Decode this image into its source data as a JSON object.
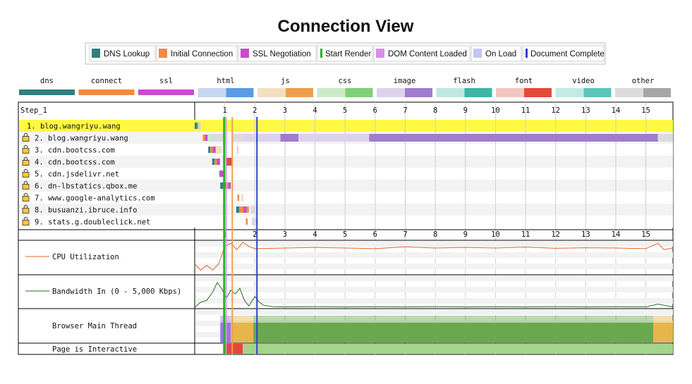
{
  "title": "Connection View",
  "legend": [
    {
      "label": "DNS Lookup",
      "color": "#2e8180",
      "swatch": "box"
    },
    {
      "label": "Initial Connection",
      "color": "#f08a45",
      "swatch": "box"
    },
    {
      "label": "SSL Negotiation",
      "color": "#c94ccd",
      "swatch": "box"
    },
    {
      "label": "Start Render",
      "color": "#28b228",
      "swatch": "line"
    },
    {
      "label": "DOM Content Loaded",
      "color": "#d88ee6",
      "swatch": "box"
    },
    {
      "label": "On Load",
      "color": "#c4c4f5",
      "swatch": "box"
    },
    {
      "label": "Document Complete",
      "color": "#2b3fd0",
      "swatch": "line"
    }
  ],
  "content_types": [
    {
      "label": "dns",
      "color": "#2e8180",
      "split": false
    },
    {
      "label": "connect",
      "color": "#f08a45",
      "split": false
    },
    {
      "label": "ssl",
      "color": "#c94ccd",
      "split": false
    },
    {
      "label": "html",
      "color": "#c6d8ef",
      "dark": "#5a9ce3",
      "split": true
    },
    {
      "label": "js",
      "color": "#f3dfc4",
      "dark": "#eca04d",
      "split": true
    },
    {
      "label": "css",
      "color": "#cbebc8",
      "dark": "#7fd07a",
      "split": true
    },
    {
      "label": "image",
      "color": "#ddd2ec",
      "dark": "#a07ccf",
      "split": true
    },
    {
      "label": "flash",
      "color": "#bfe8e2",
      "dark": "#3fb5a6",
      "split": true
    },
    {
      "label": "font",
      "color": "#f4c6c0",
      "dark": "#e44a3a",
      "split": true
    },
    {
      "label": "video",
      "color": "#c2ebe6",
      "dark": "#58c7ba",
      "split": true
    },
    {
      "label": "other",
      "color": "#dcdcdc",
      "dark": "#a6a6a6",
      "split": true
    }
  ],
  "step_label": "Step_1",
  "axis_ticks": [
    "1",
    "2",
    "3",
    "4",
    "5",
    "6",
    "7",
    "8",
    "9",
    "10",
    "11",
    "12",
    "13",
    "14",
    "15"
  ],
  "hosts": [
    {
      "label": "1. blog.wangriyu.wang",
      "secure": false,
      "highlight": true
    },
    {
      "label": "2. blog.wangriyu.wang",
      "secure": true,
      "highlight": false
    },
    {
      "label": "3. cdn.bootcss.com",
      "secure": true,
      "highlight": false
    },
    {
      "label": "4. cdn.bootcss.com",
      "secure": true,
      "highlight": false
    },
    {
      "label": "5. cdn.jsdelivr.net",
      "secure": true,
      "highlight": false
    },
    {
      "label": "6. dn-lbstatics.qbox.me",
      "secure": true,
      "highlight": false
    },
    {
      "label": "7. www.google-analytics.com",
      "secure": true,
      "highlight": false
    },
    {
      "label": "8. busuanzi.ibruce.info",
      "secure": true,
      "highlight": false
    },
    {
      "label": "9. stats.g.doubleclick.net",
      "secure": true,
      "highlight": false
    }
  ],
  "panels": {
    "cpu_label": "CPU Utilization",
    "bandwidth_label": "Bandwidth In (0 - 5,000 Kbps)",
    "main_thread_label": "Browser Main Thread",
    "interactive_label": "Page is Interactive"
  },
  "chart_data": {
    "type": "waterfall",
    "x_unit": "seconds",
    "xlim": [
      0,
      15.9
    ],
    "markers": {
      "start_render": 0.98,
      "dom_content_loaded": 1.04,
      "on_load": 1.25,
      "document_complete": 2.07
    },
    "connections": [
      {
        "host": "blog.wangriyu.wang",
        "segments": [
          {
            "type": "dns",
            "start": 0.0,
            "end": 0.08
          },
          {
            "type": "connect",
            "start": 0.08,
            "end": 0.12
          },
          {
            "type": "html",
            "start": 0.12,
            "end": 0.2
          }
        ]
      },
      {
        "host": "blog.wangriyu.wang",
        "segments": [
          {
            "type": "connect",
            "start": 0.27,
            "end": 0.35
          },
          {
            "type": "ssl",
            "start": 0.35,
            "end": 0.43
          },
          {
            "type": "css",
            "start": 0.43,
            "end": 0.55
          },
          {
            "type": "other",
            "start": 0.55,
            "end": 1.0
          },
          {
            "type": "other",
            "start": 1.25,
            "end": 1.62
          },
          {
            "type": "image",
            "start": 1.62,
            "end": 2.85
          },
          {
            "type": "image",
            "start": 2.85,
            "end": 3.45,
            "dark": true
          },
          {
            "type": "image",
            "start": 3.45,
            "end": 5.8
          },
          {
            "type": "image",
            "start": 5.8,
            "end": 15.4,
            "dark": true
          },
          {
            "type": "other",
            "start": 15.4,
            "end": 15.9
          }
        ]
      },
      {
        "host": "cdn.bootcss.com",
        "segments": [
          {
            "type": "dns",
            "start": 0.45,
            "end": 0.52
          },
          {
            "type": "connect",
            "start": 0.52,
            "end": 0.6
          },
          {
            "type": "ssl",
            "start": 0.6,
            "end": 0.7
          },
          {
            "type": "js",
            "start": 0.7,
            "end": 0.9
          },
          {
            "type": "font",
            "start": 1.4,
            "end": 1.45
          }
        ]
      },
      {
        "host": "cdn.bootcss.com",
        "segments": [
          {
            "type": "dns",
            "start": 0.58,
            "end": 0.66
          },
          {
            "type": "connect",
            "start": 0.66,
            "end": 0.74
          },
          {
            "type": "ssl",
            "start": 0.74,
            "end": 0.84
          },
          {
            "type": "font",
            "start": 1.06,
            "end": 1.26,
            "dark": true
          }
        ]
      },
      {
        "host": "cdn.jsdelivr.net",
        "segments": [
          {
            "type": "ssl",
            "start": 0.82,
            "end": 0.95
          },
          {
            "type": "connect",
            "start": 0.95,
            "end": 1.0
          }
        ]
      },
      {
        "host": "dn-lbstatics.qbox.me",
        "segments": [
          {
            "type": "dns",
            "start": 0.85,
            "end": 1.05
          },
          {
            "type": "connect",
            "start": 1.05,
            "end": 1.12
          },
          {
            "type": "ssl",
            "start": 1.12,
            "end": 1.2
          }
        ]
      },
      {
        "host": "www.google-analytics.com",
        "segments": [
          {
            "type": "connect",
            "start": 1.42,
            "end": 1.48
          },
          {
            "type": "js",
            "start": 1.55,
            "end": 1.62
          }
        ]
      },
      {
        "host": "busuanzi.ibruce.info",
        "segments": [
          {
            "type": "dns",
            "start": 1.38,
            "end": 1.48
          },
          {
            "type": "connect",
            "start": 1.48,
            "end": 1.62
          },
          {
            "type": "ssl",
            "start": 1.62,
            "end": 1.72
          },
          {
            "type": "connect",
            "start": 1.72,
            "end": 1.8
          },
          {
            "type": "other",
            "start": 1.86,
            "end": 2.03
          }
        ]
      },
      {
        "host": "stats.g.doubleclick.net",
        "segments": [
          {
            "type": "connect",
            "start": 1.7,
            "end": 1.76
          },
          {
            "type": "other",
            "start": 1.9,
            "end": 2.05
          }
        ]
      }
    ],
    "cpu_utilization_percent": [
      {
        "t": 0.0,
        "v": 30
      },
      {
        "t": 0.2,
        "v": 10
      },
      {
        "t": 0.4,
        "v": 25
      },
      {
        "t": 0.6,
        "v": 10
      },
      {
        "t": 0.8,
        "v": 30
      },
      {
        "t": 1.0,
        "v": 85
      },
      {
        "t": 1.2,
        "v": 95
      },
      {
        "t": 1.4,
        "v": 75
      },
      {
        "t": 1.6,
        "v": 98
      },
      {
        "t": 1.8,
        "v": 85
      },
      {
        "t": 2.0,
        "v": 78
      },
      {
        "t": 3.0,
        "v": 80
      },
      {
        "t": 4.0,
        "v": 82
      },
      {
        "t": 5.0,
        "v": 80
      },
      {
        "t": 6.0,
        "v": 78
      },
      {
        "t": 7.0,
        "v": 84
      },
      {
        "t": 8.0,
        "v": 80
      },
      {
        "t": 9.0,
        "v": 82
      },
      {
        "t": 10.0,
        "v": 80
      },
      {
        "t": 11.0,
        "v": 83
      },
      {
        "t": 12.0,
        "v": 79
      },
      {
        "t": 13.0,
        "v": 81
      },
      {
        "t": 14.0,
        "v": 80
      },
      {
        "t": 15.0,
        "v": 78
      },
      {
        "t": 15.4,
        "v": 95
      },
      {
        "t": 15.6,
        "v": 75
      },
      {
        "t": 15.9,
        "v": 80
      }
    ],
    "bandwidth_kbps": [
      {
        "t": 0.0,
        "v": 100
      },
      {
        "t": 0.2,
        "v": 900
      },
      {
        "t": 0.4,
        "v": 1200
      },
      {
        "t": 0.6,
        "v": 2500
      },
      {
        "t": 0.75,
        "v": 4000
      },
      {
        "t": 0.9,
        "v": 3000
      },
      {
        "t": 1.05,
        "v": 1500
      },
      {
        "t": 1.2,
        "v": 2800
      },
      {
        "t": 1.35,
        "v": 2200
      },
      {
        "t": 1.5,
        "v": 3100
      },
      {
        "t": 1.65,
        "v": 1200
      },
      {
        "t": 1.8,
        "v": 300
      },
      {
        "t": 2.0,
        "v": 1800
      },
      {
        "t": 2.15,
        "v": 900
      },
      {
        "t": 2.3,
        "v": 400
      },
      {
        "t": 2.6,
        "v": 200
      },
      {
        "t": 3.0,
        "v": 150
      },
      {
        "t": 4.0,
        "v": 200
      },
      {
        "t": 5.0,
        "v": 150
      },
      {
        "t": 6.0,
        "v": 180
      },
      {
        "t": 7.0,
        "v": 150
      },
      {
        "t": 8.0,
        "v": 200
      },
      {
        "t": 9.0,
        "v": 150
      },
      {
        "t": 10.0,
        "v": 180
      },
      {
        "t": 11.0,
        "v": 150
      },
      {
        "t": 12.0,
        "v": 200
      },
      {
        "t": 13.0,
        "v": 150
      },
      {
        "t": 14.0,
        "v": 180
      },
      {
        "t": 15.0,
        "v": 150
      },
      {
        "t": 15.4,
        "v": 600
      },
      {
        "t": 15.9,
        "v": 150
      }
    ],
    "main_thread_activity": [
      {
        "start": 0.85,
        "end": 1.2,
        "color": "#9c76e0"
      },
      {
        "start": 1.2,
        "end": 1.95,
        "color": "#e5b64a"
      },
      {
        "start": 1.95,
        "end": 15.25,
        "color": "#6aa84f"
      },
      {
        "start": 15.25,
        "end": 15.9,
        "color": "#e5b64a"
      }
    ],
    "page_interactive": [
      {
        "start": 1.0,
        "end": 1.6,
        "interactive": false,
        "color": "#e4473b"
      },
      {
        "start": 1.6,
        "end": 15.9,
        "interactive": true,
        "color": "#a4d58b"
      }
    ]
  }
}
